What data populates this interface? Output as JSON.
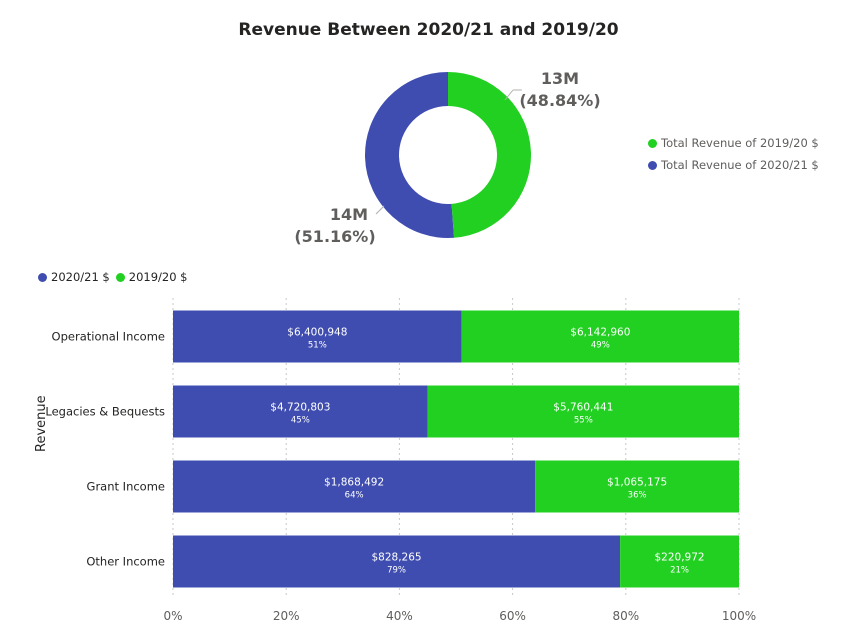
{
  "colors": {
    "series_2020_21": "#3f4db1",
    "series_2019_20": "#21d021",
    "grid": "#c8c8c8",
    "text": "#252423",
    "muted": "#605e5c"
  },
  "donut": {
    "title": "Revenue Between 2020/21 and 2019/20",
    "legend": [
      "Total Revenue of 2019/20 $",
      "Total Revenue of 2020/21 $"
    ],
    "labels": {
      "green": {
        "value": "13M",
        "pct": "(48.84%)"
      },
      "blue": {
        "value": "14M",
        "pct": "(51.16%)"
      }
    }
  },
  "bar_legend": [
    "2020/21 $",
    "2019/20 $"
  ],
  "y_axis_title": "Revenue",
  "chart_data": [
    {
      "type": "pie",
      "title": "Revenue Between 2020/21 and 2019/20",
      "categories": [
        "Total Revenue of 2019/20 $",
        "Total Revenue of 2020/21 $"
      ],
      "values": [
        48.84,
        51.16
      ],
      "value_labels": [
        "13M",
        "14M"
      ],
      "donut": true
    },
    {
      "type": "bar",
      "orientation": "horizontal",
      "stacked": "100%",
      "ylabel": "Revenue",
      "categories": [
        "Operational Income",
        "Legacies & Bequests",
        "Grant Income",
        "Other Income"
      ],
      "series": [
        {
          "name": "2020/21 $",
          "values": [
            51,
            45,
            64,
            79
          ],
          "labels": [
            "$6,400,948",
            "$4,720,803",
            "$1,868,492",
            "$828,265"
          ]
        },
        {
          "name": "2019/20 $",
          "values": [
            49,
            55,
            36,
            21
          ],
          "labels": [
            "$6,142,960",
            "$5,760,441",
            "$1,065,175",
            "$220,972"
          ]
        }
      ],
      "xticks": [
        "0%",
        "20%",
        "40%",
        "60%",
        "80%",
        "100%"
      ],
      "xlim": [
        0,
        100
      ],
      "grid": true
    }
  ]
}
